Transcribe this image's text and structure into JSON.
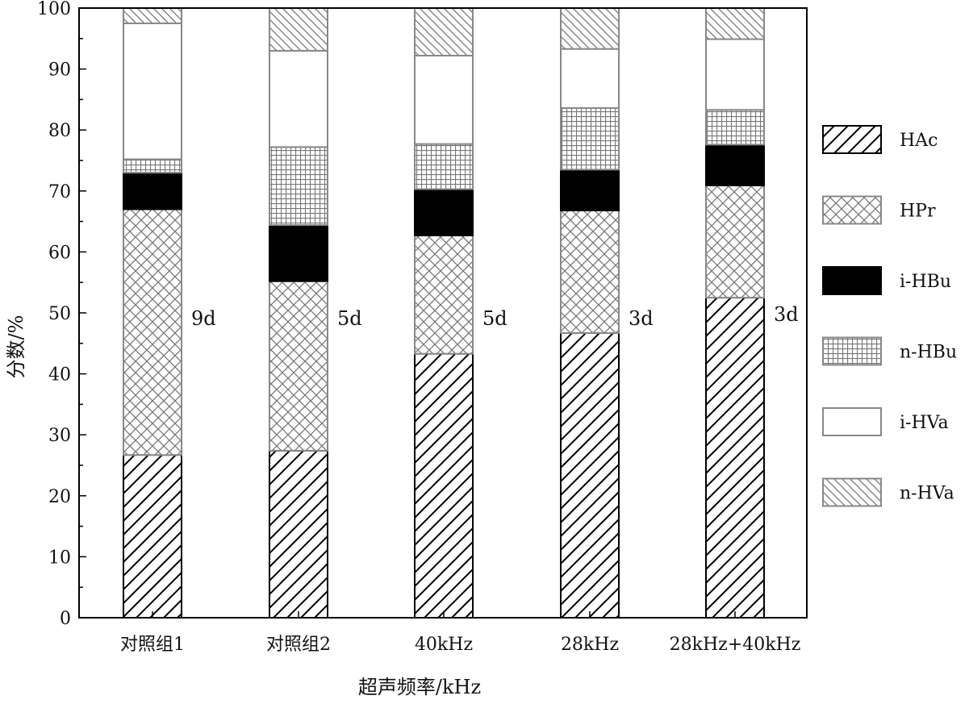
{
  "chart_data": {
    "type": "bar",
    "stacked": true,
    "categories": [
      "对照组1",
      "对照组2",
      "40kHz",
      "28kHz",
      "28kHz+40kHz"
    ],
    "series": [
      {
        "name": "HAc",
        "pattern": "diagonal-forward",
        "values": [
          26.7,
          27.4,
          43.3,
          46.7,
          52.5
        ]
      },
      {
        "name": "HPr",
        "pattern": "crosshatch",
        "values": [
          40.3,
          27.8,
          19.4,
          20.1,
          18.4
        ]
      },
      {
        "name": "i-HBu",
        "pattern": "solid-black",
        "values": [
          6.0,
          9.2,
          7.6,
          6.7,
          6.7
        ]
      },
      {
        "name": "n-HBu",
        "pattern": "grid",
        "values": [
          2.2,
          12.8,
          7.4,
          10.1,
          5.7
        ]
      },
      {
        "name": "i-HVa",
        "pattern": "empty",
        "values": [
          22.3,
          15.8,
          14.5,
          9.7,
          11.6
        ]
      },
      {
        "name": "n-HVa",
        "pattern": "diagonal-backward",
        "values": [
          2.5,
          7.0,
          7.8,
          6.7,
          5.1
        ]
      }
    ],
    "annotations": [
      "9d",
      "5d",
      "5d",
      "3d",
      "3d"
    ],
    "xlabel": "超声频率/kHz",
    "ylabel": "分数/%",
    "ylim": [
      0,
      100
    ],
    "yticks": [
      0,
      10,
      20,
      30,
      40,
      50,
      60,
      70,
      80,
      90,
      100
    ],
    "grid": false,
    "legend_position": "right"
  }
}
